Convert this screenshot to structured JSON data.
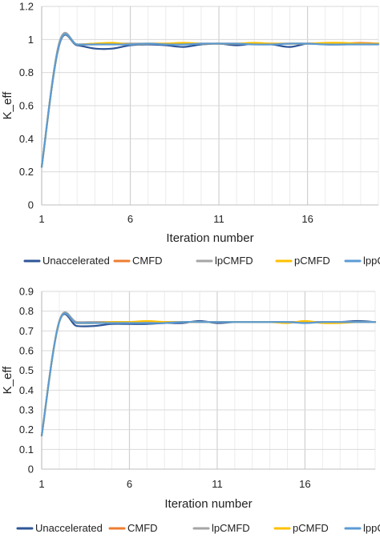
{
  "colors": {
    "background": "#ffffff",
    "grid": "#d9d9d9",
    "axis": "#bfbfbf",
    "text": "#222222"
  },
  "chart_data": [
    {
      "type": "line",
      "title": "",
      "xlabel": "Iteration number",
      "ylabel": "K_eff",
      "xlim": [
        1,
        20
      ],
      "ylim": [
        0,
        1.2
      ],
      "x_ticks": [
        1,
        6,
        11,
        16
      ],
      "y_ticks": [
        0,
        0.2,
        0.4,
        0.6,
        0.8,
        1,
        1.2
      ],
      "y_tick_labels": [
        "0",
        "0.2",
        "0.4",
        "0.6",
        "0.8",
        "1",
        "1.2"
      ],
      "grid": true,
      "legend": "bottom",
      "x": [
        1,
        2,
        3,
        4,
        5,
        6,
        7,
        8,
        9,
        10,
        11,
        12,
        13,
        14,
        15,
        16,
        17,
        18,
        19,
        20
      ],
      "series": [
        {
          "name": "Unaccelerated",
          "color": "#2e5597",
          "values": [
            0.23,
            0.97,
            0.965,
            0.945,
            0.945,
            0.965,
            0.97,
            0.965,
            0.955,
            0.97,
            0.975,
            0.965,
            0.975,
            0.97,
            0.955,
            0.975,
            0.97,
            0.97,
            0.975,
            0.975
          ]
        },
        {
          "name": "CMFD",
          "color": "#ed7d31",
          "values": [
            0.23,
            0.98,
            0.97,
            0.975,
            0.975,
            0.975,
            0.975,
            0.975,
            0.975,
            0.975,
            0.975,
            0.975,
            0.975,
            0.975,
            0.975,
            0.975,
            0.975,
            0.975,
            0.98,
            0.975
          ]
        },
        {
          "name": "lpCMFD",
          "color": "#a5a5a5",
          "values": [
            0.23,
            0.985,
            0.97,
            0.97,
            0.975,
            0.975,
            0.975,
            0.975,
            0.975,
            0.975,
            0.975,
            0.975,
            0.975,
            0.975,
            0.975,
            0.975,
            0.975,
            0.975,
            0.975,
            0.975
          ]
        },
        {
          "name": "pCMFD",
          "color": "#ffc000",
          "values": [
            0.23,
            0.975,
            0.97,
            0.975,
            0.98,
            0.97,
            0.975,
            0.975,
            0.98,
            0.975,
            0.975,
            0.975,
            0.98,
            0.975,
            0.975,
            0.975,
            0.98,
            0.98,
            0.975,
            0.975
          ]
        },
        {
          "name": "lppCMFD",
          "color": "#5b9bd5",
          "values": [
            0.23,
            0.975,
            0.97,
            0.97,
            0.97,
            0.97,
            0.975,
            0.97,
            0.97,
            0.975,
            0.975,
            0.975,
            0.97,
            0.97,
            0.975,
            0.975,
            0.97,
            0.97,
            0.97,
            0.97
          ]
        }
      ]
    },
    {
      "type": "line",
      "title": "",
      "xlabel": "Iteration number",
      "ylabel": "K_eff",
      "xlim": [
        1,
        20
      ],
      "ylim": [
        0,
        0.9
      ],
      "x_ticks": [
        1,
        6,
        11,
        16
      ],
      "y_ticks": [
        0,
        0.1,
        0.2,
        0.3,
        0.4,
        0.5,
        0.6,
        0.7,
        0.8,
        0.9
      ],
      "y_tick_labels": [
        "0",
        "0.1",
        "0.2",
        "0.3",
        "0.4",
        "0.5",
        "0.6",
        "0.7",
        "0.8",
        "0.9"
      ],
      "grid": true,
      "legend": "bottom",
      "x": [
        1,
        2,
        3,
        4,
        5,
        6,
        7,
        8,
        9,
        10,
        11,
        12,
        13,
        14,
        15,
        16,
        17,
        18,
        19,
        20
      ],
      "series": [
        {
          "name": "Unaccelerated",
          "color": "#2e5597",
          "values": [
            0.17,
            0.745,
            0.725,
            0.725,
            0.735,
            0.735,
            0.735,
            0.74,
            0.74,
            0.75,
            0.74,
            0.745,
            0.745,
            0.745,
            0.745,
            0.745,
            0.745,
            0.745,
            0.75,
            0.745
          ]
        },
        {
          "name": "CMFD",
          "color": "#ed7d31",
          "values": [
            0.17,
            0.745,
            0.74,
            0.745,
            0.745,
            0.745,
            0.745,
            0.745,
            0.745,
            0.745,
            0.745,
            0.745,
            0.745,
            0.745,
            0.745,
            0.745,
            0.745,
            0.745,
            0.745,
            0.745
          ]
        },
        {
          "name": "lpCMFD",
          "color": "#a5a5a5",
          "values": [
            0.17,
            0.75,
            0.745,
            0.745,
            0.745,
            0.745,
            0.745,
            0.745,
            0.745,
            0.745,
            0.745,
            0.745,
            0.745,
            0.745,
            0.745,
            0.745,
            0.745,
            0.745,
            0.745,
            0.745
          ]
        },
        {
          "name": "pCMFD",
          "color": "#ffc000",
          "values": [
            0.17,
            0.745,
            0.74,
            0.74,
            0.745,
            0.745,
            0.75,
            0.745,
            0.745,
            0.745,
            0.745,
            0.745,
            0.745,
            0.745,
            0.74,
            0.75,
            0.74,
            0.74,
            0.745,
            0.745
          ]
        },
        {
          "name": "lppCMFD",
          "color": "#5b9bd5",
          "values": [
            0.17,
            0.745,
            0.74,
            0.74,
            0.74,
            0.74,
            0.74,
            0.74,
            0.745,
            0.745,
            0.745,
            0.745,
            0.745,
            0.745,
            0.745,
            0.74,
            0.745,
            0.745,
            0.745,
            0.745
          ]
        }
      ]
    }
  ]
}
